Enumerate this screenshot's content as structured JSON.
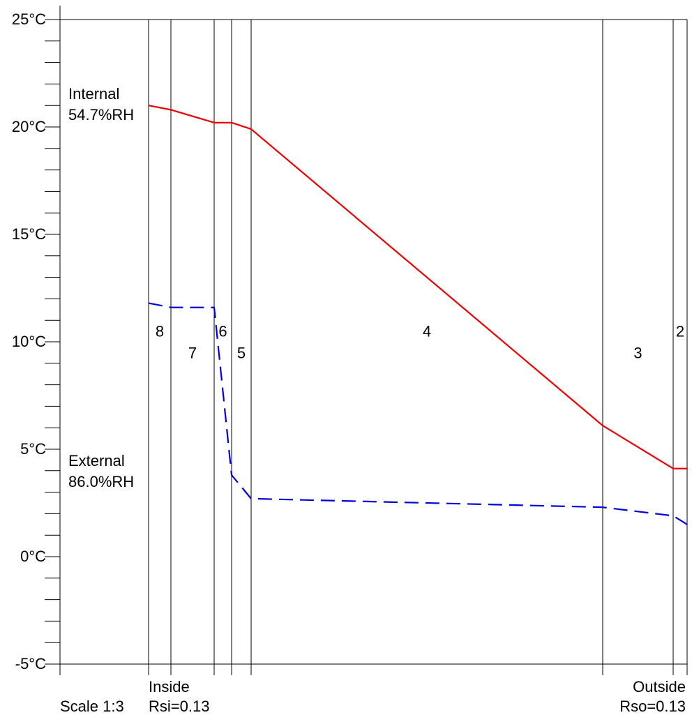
{
  "chart_data": {
    "type": "line",
    "ylim": [
      -5,
      25
    ],
    "y_tick_labels": [
      "25°C",
      "20°C",
      "15°C",
      "10°C",
      "5°C",
      "0°C",
      "-5°C"
    ],
    "y_tick_values": [
      25,
      20,
      15,
      10,
      5,
      0,
      -5
    ],
    "minor_tick_step": 1,
    "layers": [
      {
        "label": "8",
        "text_y": 10.5
      },
      {
        "label": "7",
        "text_y": 9.5
      },
      {
        "label": "6",
        "text_y": 10.5
      },
      {
        "label": "5",
        "text_y": 9.5
      },
      {
        "label": "4",
        "text_y": 10.5
      },
      {
        "label": "3",
        "text_y": 9.5
      },
      {
        "label": "2",
        "text_y": 10.5
      },
      {
        "label": "",
        "text_y": 9.5
      }
    ],
    "series": [
      {
        "color": "#ee0000",
        "dash": false,
        "values": [
          21.0,
          20.8,
          20.2,
          20.2,
          19.9,
          6.1,
          4.1,
          4.1
        ]
      },
      {
        "color": "#0000dd",
        "dash": true,
        "values": [
          11.8,
          11.6,
          11.6,
          3.8,
          2.7,
          2.3,
          1.9,
          1.5
        ]
      }
    ],
    "annotations": {
      "internal_label": "Internal",
      "internal_rh": "54.7%RH",
      "external_label": "External",
      "external_rh": "86.0%RH",
      "inside": "Inside",
      "rsi": "Rsi=0.13",
      "outside": "Outside",
      "rso": "Rso=0.13",
      "scale": "Scale 1:3"
    }
  }
}
